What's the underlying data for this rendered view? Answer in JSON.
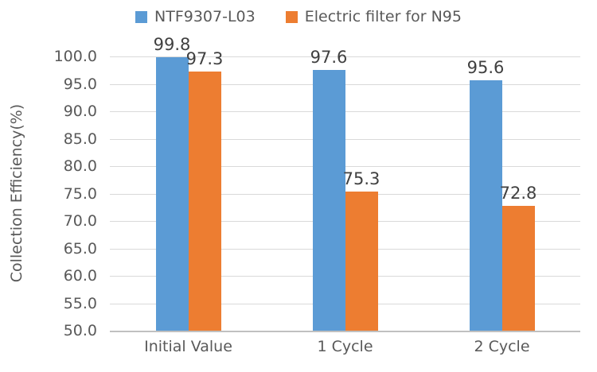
{
  "chart_data": {
    "type": "bar",
    "title": "",
    "categories": [
      "Initial Value",
      "1 Cycle",
      "2 Cycle"
    ],
    "series": [
      {
        "name": "NTF9307-L03",
        "color": "#5B9BD5",
        "values": [
          99.8,
          97.6,
          95.6
        ]
      },
      {
        "name": "Electric filter for N95",
        "color": "#ED7D31",
        "values": [
          97.3,
          75.3,
          72.8
        ]
      }
    ],
    "xlabel": "",
    "ylabel": "Collection Efficiency(%)",
    "ylim": [
      50.0,
      100.0
    ],
    "ytick_step": 5.0,
    "ytick_labels": [
      "50.0",
      "55.0",
      "60.0",
      "65.0",
      "70.0",
      "75.0",
      "80.0",
      "85.0",
      "90.0",
      "95.0",
      "100.0"
    ],
    "grid": true,
    "legend_position": "top",
    "colors": {
      "gridline": "#D9D9D9",
      "axis_line": "#C0C0C0",
      "tick_label": "#595959",
      "data_label": "#404040",
      "background": "#FFFFFF"
    }
  }
}
